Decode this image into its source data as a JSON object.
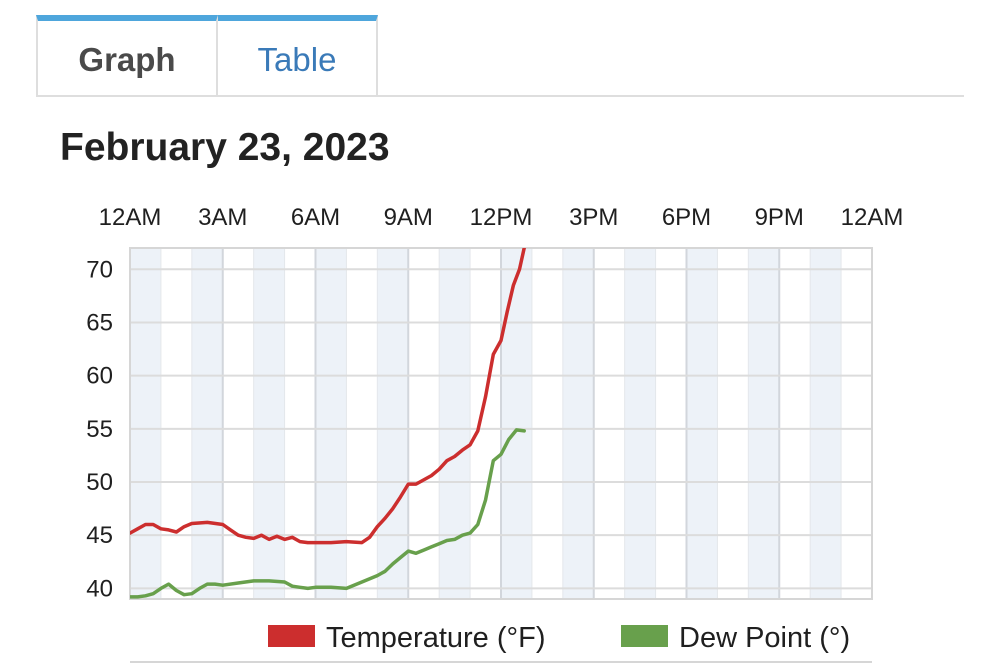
{
  "tabs": [
    {
      "label": "Graph",
      "active": true
    },
    {
      "label": "Table",
      "active": false
    }
  ],
  "page_title": "February 23, 2023",
  "chart_data": {
    "type": "line",
    "title": "February 23, 2023",
    "xlabel": "",
    "ylabel": "",
    "x_unit": "hours since midnight",
    "x_ticks": [
      {
        "hour": 0,
        "label": "12AM"
      },
      {
        "hour": 3,
        "label": "3AM"
      },
      {
        "hour": 6,
        "label": "6AM"
      },
      {
        "hour": 9,
        "label": "9AM"
      },
      {
        "hour": 12,
        "label": "12PM"
      },
      {
        "hour": 15,
        "label": "3PM"
      },
      {
        "hour": 18,
        "label": "6PM"
      },
      {
        "hour": 21,
        "label": "9PM"
      },
      {
        "hour": 24,
        "label": "12AM"
      }
    ],
    "x_axis_position": "top",
    "xlim": [
      0,
      24
    ],
    "y_ticks": [
      40,
      45,
      50,
      55,
      60,
      65,
      70
    ],
    "ylim": [
      39,
      72
    ],
    "grid": true,
    "legend_position": "bottom",
    "series": [
      {
        "name": "Temperature (°F)",
        "color": "#cc2e2e",
        "points": [
          [
            0.0,
            45.2
          ],
          [
            0.25,
            45.6
          ],
          [
            0.5,
            46.0
          ],
          [
            0.75,
            46.0
          ],
          [
            1.0,
            45.6
          ],
          [
            1.25,
            45.5
          ],
          [
            1.5,
            45.3
          ],
          [
            1.75,
            45.8
          ],
          [
            2.0,
            46.1
          ],
          [
            2.5,
            46.2
          ],
          [
            3.0,
            46.0
          ],
          [
            3.25,
            45.5
          ],
          [
            3.5,
            45.0
          ],
          [
            3.75,
            44.8
          ],
          [
            4.0,
            44.7
          ],
          [
            4.25,
            45.0
          ],
          [
            4.5,
            44.6
          ],
          [
            4.75,
            44.9
          ],
          [
            5.0,
            44.6
          ],
          [
            5.25,
            44.8
          ],
          [
            5.5,
            44.4
          ],
          [
            5.75,
            44.3
          ],
          [
            6.0,
            44.3
          ],
          [
            6.5,
            44.3
          ],
          [
            7.0,
            44.4
          ],
          [
            7.5,
            44.3
          ],
          [
            7.75,
            44.8
          ],
          [
            8.0,
            45.8
          ],
          [
            8.25,
            46.6
          ],
          [
            8.5,
            47.5
          ],
          [
            8.75,
            48.6
          ],
          [
            9.0,
            49.8
          ],
          [
            9.25,
            49.8
          ],
          [
            9.5,
            50.2
          ],
          [
            9.75,
            50.6
          ],
          [
            10.0,
            51.2
          ],
          [
            10.25,
            52.0
          ],
          [
            10.5,
            52.4
          ],
          [
            10.75,
            53.0
          ],
          [
            11.0,
            53.5
          ],
          [
            11.25,
            54.8
          ],
          [
            11.5,
            58.0
          ],
          [
            11.75,
            62.0
          ],
          [
            12.0,
            63.3
          ],
          [
            12.2,
            66.0
          ],
          [
            12.4,
            68.5
          ],
          [
            12.6,
            70.0
          ],
          [
            12.75,
            72.0
          ]
        ]
      },
      {
        "name": "Dew Point (°)",
        "color": "#68a04c",
        "points": [
          [
            0.0,
            39.2
          ],
          [
            0.25,
            39.2
          ],
          [
            0.5,
            39.3
          ],
          [
            0.75,
            39.5
          ],
          [
            1.0,
            40.0
          ],
          [
            1.25,
            40.4
          ],
          [
            1.5,
            39.8
          ],
          [
            1.75,
            39.4
          ],
          [
            2.0,
            39.5
          ],
          [
            2.25,
            40.0
          ],
          [
            2.5,
            40.4
          ],
          [
            2.75,
            40.4
          ],
          [
            3.0,
            40.3
          ],
          [
            3.5,
            40.5
          ],
          [
            4.0,
            40.7
          ],
          [
            4.5,
            40.7
          ],
          [
            5.0,
            40.6
          ],
          [
            5.25,
            40.2
          ],
          [
            5.5,
            40.1
          ],
          [
            5.75,
            40.0
          ],
          [
            6.0,
            40.1
          ],
          [
            6.5,
            40.1
          ],
          [
            7.0,
            40.0
          ],
          [
            7.5,
            40.6
          ],
          [
            8.0,
            41.2
          ],
          [
            8.25,
            41.6
          ],
          [
            8.5,
            42.3
          ],
          [
            8.75,
            42.9
          ],
          [
            9.0,
            43.5
          ],
          [
            9.25,
            43.3
          ],
          [
            9.5,
            43.6
          ],
          [
            9.75,
            43.9
          ],
          [
            10.0,
            44.2
          ],
          [
            10.25,
            44.5
          ],
          [
            10.5,
            44.6
          ],
          [
            10.75,
            45.0
          ],
          [
            11.0,
            45.2
          ],
          [
            11.25,
            46.0
          ],
          [
            11.5,
            48.3
          ],
          [
            11.75,
            52.0
          ],
          [
            12.0,
            52.6
          ],
          [
            12.25,
            54.0
          ],
          [
            12.5,
            54.9
          ],
          [
            12.75,
            54.8
          ]
        ]
      }
    ]
  }
}
